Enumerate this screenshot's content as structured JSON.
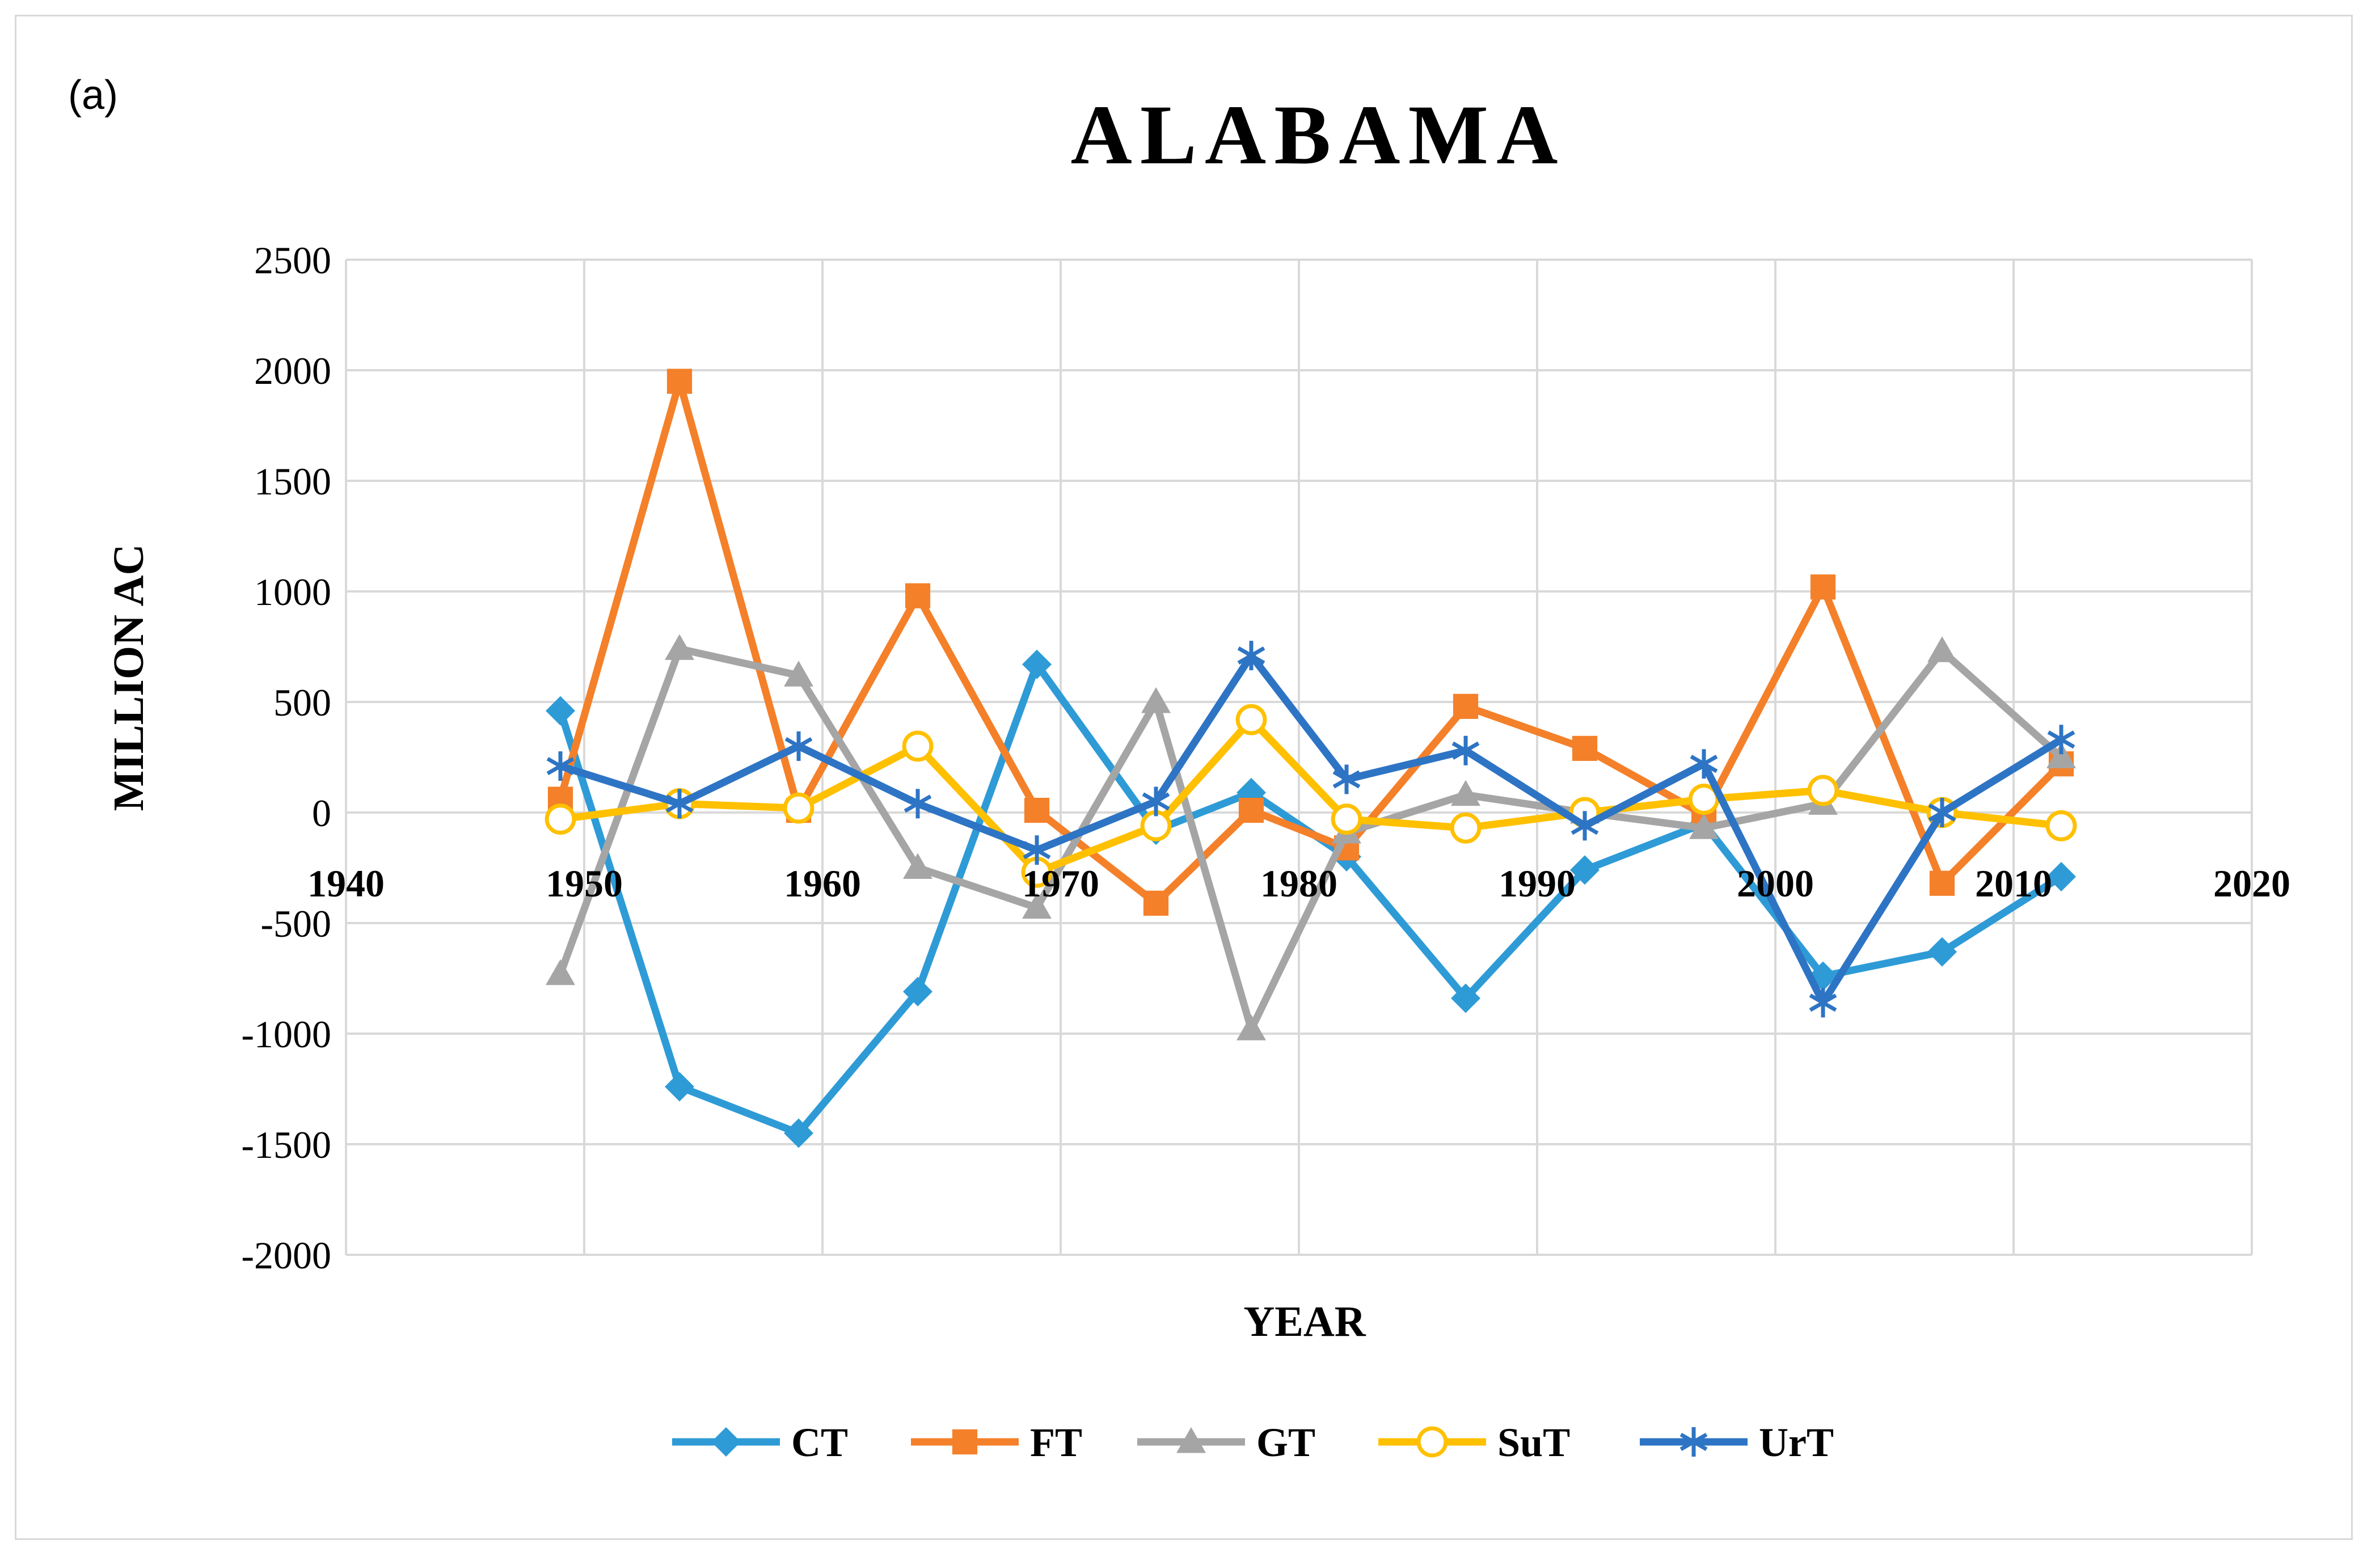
{
  "panel_label": "(a)",
  "chart_data": {
    "type": "line",
    "title": "ALABAMA",
    "xlabel": "YEAR",
    "ylabel": "MILLION AC",
    "xlim": [
      1940,
      2020
    ],
    "ylim": [
      -2000,
      2500
    ],
    "x_ticks": [
      1940,
      1950,
      1960,
      1970,
      1980,
      1990,
      2000,
      2010,
      2020
    ],
    "y_ticks": [
      2500,
      2000,
      1500,
      1000,
      500,
      0,
      -500,
      -1000,
      -1500,
      -2000
    ],
    "grid": true,
    "legend_position": "bottom",
    "x": [
      1949,
      1954,
      1959,
      1964,
      1969,
      1974,
      1978,
      1982,
      1987,
      1992,
      1997,
      2002,
      2007,
      2012
    ],
    "series": [
      {
        "name": "CT",
        "color": "#2E9BD6",
        "marker": "diamond",
        "values": [
          460,
          -1240,
          -1450,
          -810,
          670,
          -80,
          90,
          -200,
          -840,
          -260,
          -50,
          -740,
          -630,
          -290
        ]
      },
      {
        "name": "FT",
        "color": "#F4802A",
        "marker": "square",
        "values": [
          60,
          1950,
          10,
          980,
          10,
          -410,
          10,
          -160,
          480,
          290,
          -10,
          1020,
          -320,
          220
        ]
      },
      {
        "name": "GT",
        "color": "#A5A5A5",
        "marker": "triangle",
        "values": [
          -730,
          740,
          620,
          -250,
          -430,
          500,
          -980,
          -90,
          80,
          0,
          -70,
          40,
          730,
          250
        ]
      },
      {
        "name": "SuT",
        "color": "#FFC000",
        "marker": "circle",
        "values": [
          -30,
          40,
          20,
          300,
          -270,
          -60,
          420,
          -30,
          -70,
          0,
          60,
          100,
          0,
          -60
        ]
      },
      {
        "name": "UrT",
        "color": "#2E74C4",
        "marker": "star",
        "values": [
          210,
          40,
          300,
          40,
          -170,
          50,
          710,
          150,
          280,
          -60,
          220,
          -860,
          0,
          330
        ]
      }
    ]
  }
}
